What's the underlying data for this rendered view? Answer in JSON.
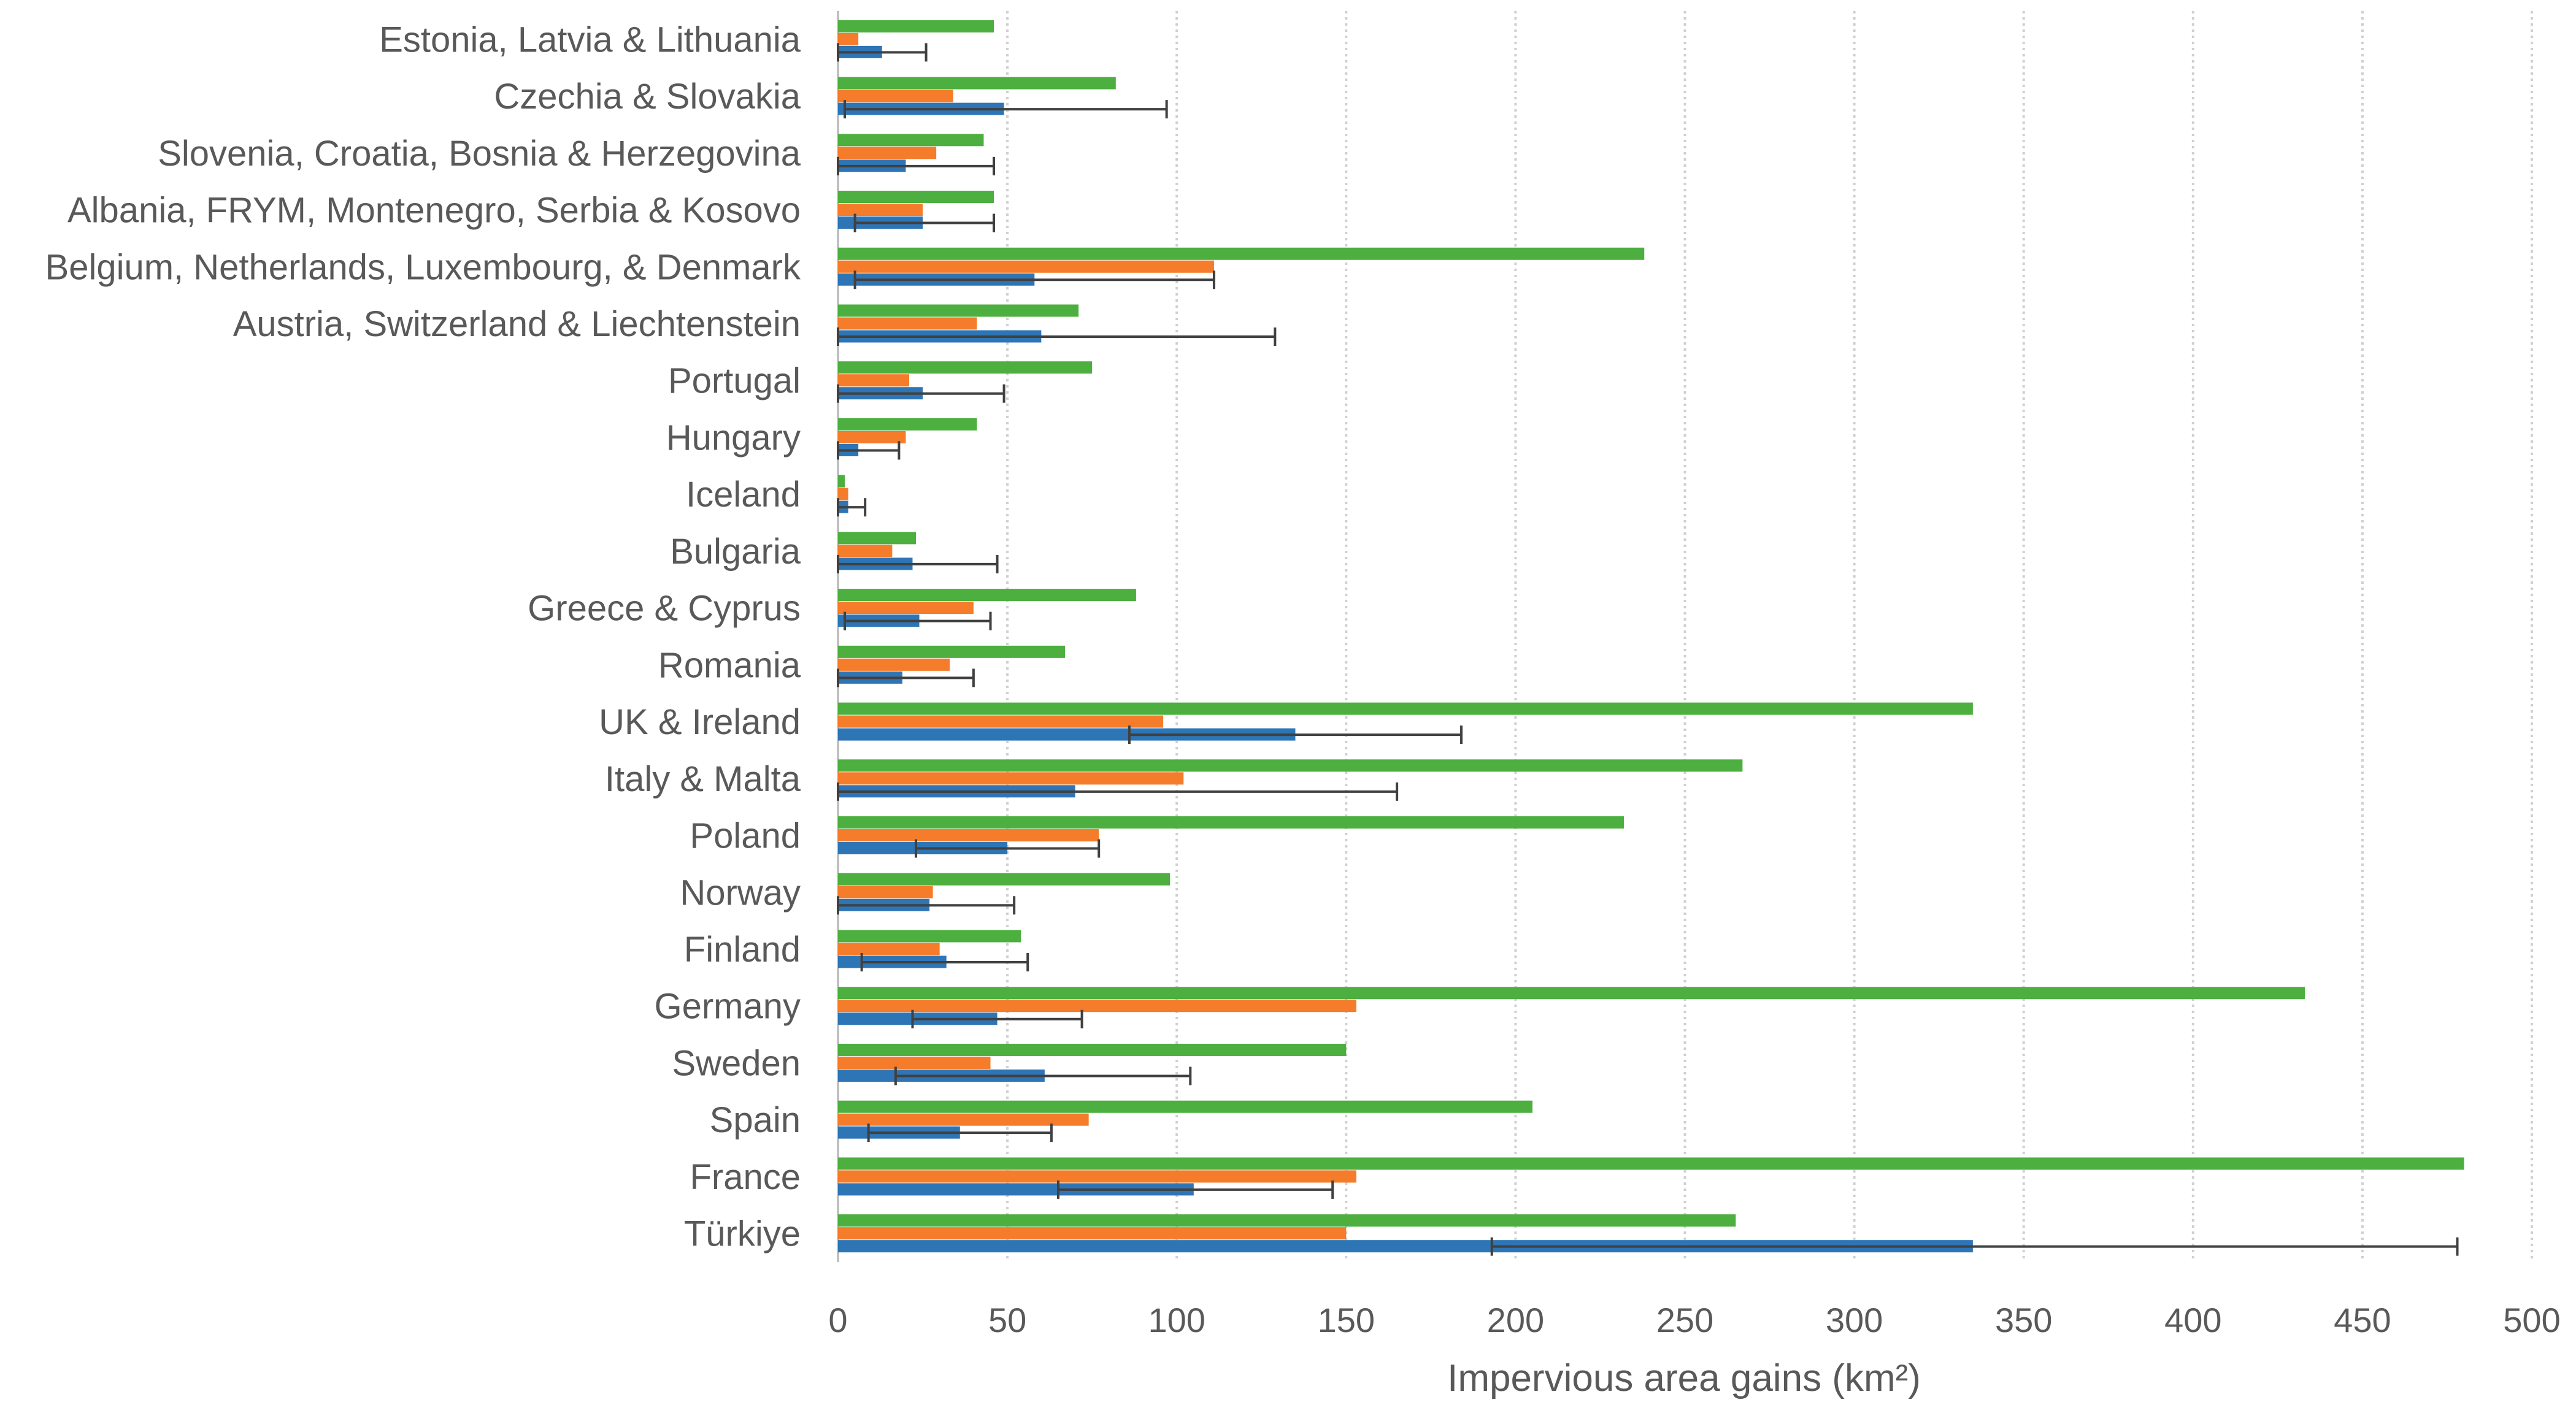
{
  "chart_data": {
    "type": "bar",
    "orientation": "horizontal",
    "categories": [
      "Estonia, Latvia & Lithuania",
      "Czechia & Slovakia",
      "Slovenia, Croatia, Bosnia & Herzegovina",
      "Albania, FRYM, Montenegro, Serbia & Kosovo",
      "Belgium, Netherlands, Luxembourg, & Denmark",
      "Austria, Switzerland & Liechtenstein",
      "Portugal",
      "Hungary",
      "Iceland",
      "Bulgaria",
      "Greece & Cyprus",
      "Romania",
      "UK & Ireland",
      "Italy & Malta",
      "Poland",
      "Norway",
      "Finland",
      "Germany",
      "Sweden",
      "Spain",
      "France",
      "Türkiye"
    ],
    "series": [
      {
        "color": "#4caf3f",
        "values": [
          46,
          82,
          43,
          46,
          238,
          71,
          75,
          41,
          2,
          23,
          88,
          67,
          335,
          267,
          232,
          98,
          54,
          433,
          150,
          205,
          480,
          265
        ]
      },
      {
        "color": "#f47c2a",
        "values": [
          6,
          34,
          29,
          25,
          111,
          41,
          21,
          20,
          3,
          16,
          40,
          33,
          96,
          102,
          77,
          28,
          30,
          153,
          45,
          74,
          153,
          150
        ]
      },
      {
        "color": "#2e75b6",
        "values": [
          13,
          49,
          20,
          25,
          58,
          60,
          25,
          6,
          3,
          22,
          24,
          19,
          135,
          70,
          50,
          27,
          32,
          47,
          61,
          36,
          105,
          335
        ],
        "error_low": [
          0,
          2,
          0,
          5,
          5,
          0,
          0,
          0,
          0,
          0,
          2,
          0,
          86,
          0,
          23,
          0,
          7,
          22,
          17,
          9,
          65,
          193
        ],
        "error_high": [
          26,
          97,
          46,
          46,
          111,
          129,
          49,
          18,
          8,
          47,
          45,
          40,
          184,
          165,
          77,
          52,
          56,
          72,
          104,
          63,
          146,
          478
        ]
      }
    ],
    "xlabel": "Impervious area gains (km²)",
    "ylabel": "",
    "xlim": [
      0,
      500
    ],
    "xticks": [
      "0",
      "50",
      "100",
      "150",
      "200",
      "250",
      "300",
      "350",
      "400",
      "450",
      "500"
    ],
    "grid": "vertical dashed",
    "legend": "none"
  }
}
